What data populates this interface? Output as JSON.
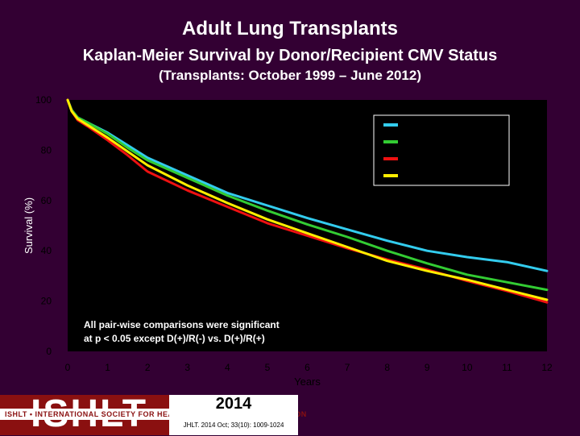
{
  "header": {
    "title": "Adult Lung Transplants",
    "subtitle": "Kaplan-Meier Survival by Donor/Recipient CMV Status",
    "period": "(Transplants: October 1999 – June 2012)"
  },
  "chart_data": {
    "type": "line",
    "xlabel": "Years",
    "ylabel": "Survival (%)",
    "xlim": [
      0,
      12
    ],
    "ylim": [
      0,
      100
    ],
    "x_ticks": [
      0,
      1,
      2,
      3,
      4,
      5,
      6,
      7,
      8,
      9,
      10,
      11,
      12
    ],
    "y_ticks": [
      0,
      20,
      40,
      60,
      80,
      100
    ],
    "grid": false,
    "legend_position": "top-right",
    "x": [
      0,
      0.1,
      0.25,
      0.5,
      1,
      1.5,
      2,
      3,
      4,
      5,
      6,
      7,
      8,
      9,
      10,
      11,
      12
    ],
    "series": [
      {
        "color": "#33ccee",
        "values": [
          100,
          96,
          93,
          91,
          87,
          82,
          77,
          70,
          63,
          58,
          53,
          48.5,
          44,
          40,
          37.5,
          35.5,
          32
        ]
      },
      {
        "color": "#33cc33",
        "values": [
          100,
          96,
          93,
          91,
          86.5,
          81,
          76,
          69,
          62,
          56,
          50.5,
          45.5,
          40,
          35,
          30.5,
          27.5,
          24.5
        ]
      },
      {
        "color": "#ee1111",
        "values": [
          100,
          95.5,
          92,
          89.5,
          84,
          78,
          71.5,
          64,
          57.5,
          51,
          46,
          41,
          36.5,
          32.5,
          28,
          24,
          19.5
        ]
      },
      {
        "color": "#ffee00",
        "values": [
          100,
          95.5,
          92.5,
          90,
          85,
          79.5,
          74,
          66,
          59,
          52.5,
          47,
          41.5,
          36,
          32,
          28.5,
          24.5,
          20.5
        ]
      }
    ],
    "annotation": [
      "All pair-wise comparisons were significant",
      "at p < 0.05 except D(+)/R(-) vs. D(+)/R(+)"
    ],
    "colors": {
      "plot_background": "#000000",
      "page_background": "#330033",
      "axis_text": "#000000"
    }
  },
  "footer": {
    "logo": "ISHLT",
    "logo_subtitle": "ISHLT • INTERNATIONAL SOCIETY FOR HEART AND LUNG TRANSPLANTATION",
    "year": "2014",
    "citation": "JHLT. 2014 Oct; 33(10): 1009-1024"
  }
}
